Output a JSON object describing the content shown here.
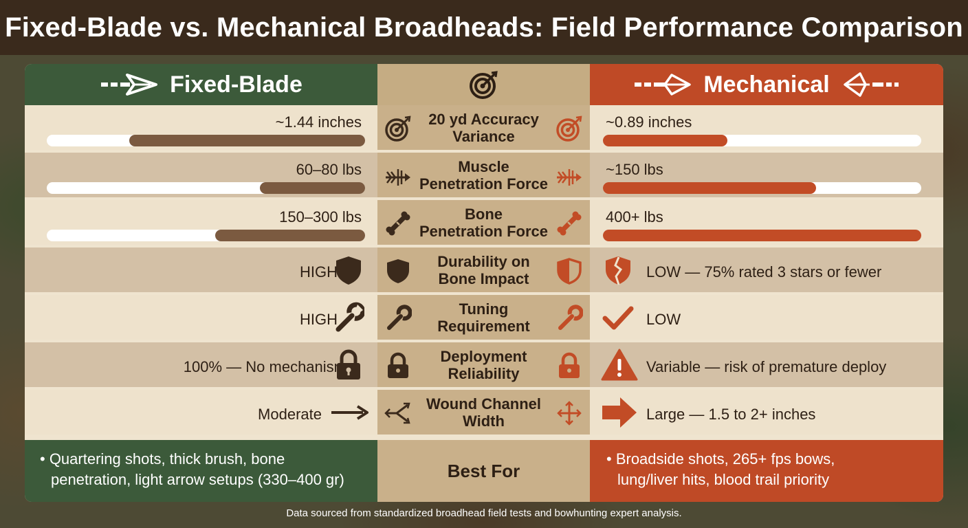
{
  "title": "Fixed-Blade vs. Mechanical Broadheads: Field Performance Comparison",
  "header": {
    "left_label": "Fixed-Blade",
    "right_label": "Mechanical",
    "colors": {
      "fixed": "#3c5a3a",
      "mechanical": "#bf4a26",
      "center": "#c5ac83"
    }
  },
  "rows": [
    {
      "label": "20 yd Accuracy\nVariance",
      "left_value": "~1.44 inches",
      "right_value": "~0.89 inches",
      "left_bar_fraction": 0.74,
      "right_bar_fraction": 0.39,
      "icon": "target-icon"
    },
    {
      "label": "Muscle\nPenetration Force",
      "left_value": "60–80 lbs",
      "right_value": "~150 lbs",
      "left_bar_fraction": 0.33,
      "right_bar_fraction": 0.67,
      "icon": "arrow-icon"
    },
    {
      "label": "Bone\nPenetration Force",
      "left_value": "150–300 lbs",
      "right_value": "400+ lbs",
      "left_bar_fraction": 0.47,
      "right_bar_fraction": 1.0,
      "icon": "bone-icon"
    },
    {
      "label": "Durability on\nBone Impact",
      "left_value": "HIGH",
      "right_value": "LOW — 75% rated 3 stars or fewer",
      "left_icon": "shield-icon",
      "right_icon": "cracked-shield-icon"
    },
    {
      "label": "Tuning\nRequirement",
      "left_value": "HIGH",
      "right_value": "LOW",
      "left_icon": "wrench-icon",
      "right_icon": "checkmark-icon"
    },
    {
      "label": "Deployment\nReliability",
      "left_value": "100% — No mechanism",
      "right_value": "Variable — risk of premature deploy",
      "left_icon": "lock-icon",
      "right_icon": "warning-icon"
    },
    {
      "label": "Wound Channel\nWidth",
      "left_value": "Moderate",
      "right_value": "Large — 1.5 to 2+ inches",
      "left_icon": "thin-arrow-icon",
      "right_icon": "thick-arrow-icon"
    }
  ],
  "best_for": {
    "label": "Best For",
    "left_line1": "• Quartering shots, thick brush, bone",
    "left_line2": "penetration, light arrow setups (330–400 gr)",
    "right_line1": "• Broadside shots, 265+ fps bows,",
    "right_line2": "lung/liver hits, blood trail priority"
  },
  "footer": "Data sourced from standardized broadhead field tests and bowhunting expert analysis."
}
